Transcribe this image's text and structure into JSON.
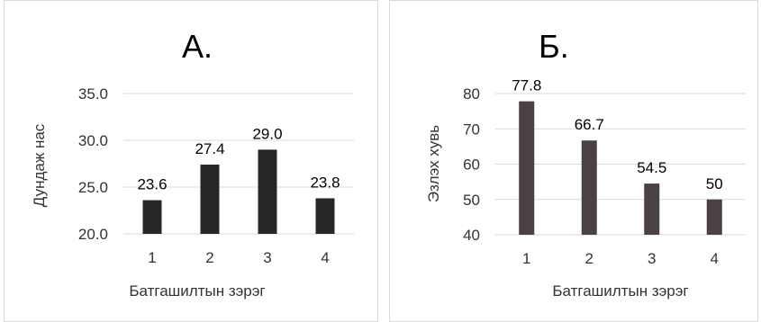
{
  "chart_data": [
    {
      "type": "bar",
      "title": "А.",
      "xlabel": "Батгашилтын зэрэг",
      "ylabel": "Дундаж нас",
      "categories": [
        "1",
        "2",
        "3",
        "4"
      ],
      "values": [
        23.6,
        27.4,
        29.0,
        23.8
      ],
      "data_labels": [
        "23.6",
        "27.4",
        "29.0",
        "23.8"
      ],
      "yticks": [
        "20.0",
        "25.0",
        "30.0",
        "35.0"
      ],
      "ylim": [
        20,
        35
      ],
      "grid": true,
      "legend": "none",
      "bar_color": "#262626"
    },
    {
      "type": "bar",
      "title": "Б.",
      "xlabel": "Батгашилтын зэрэг",
      "ylabel": "Эзлэх хувь",
      "categories": [
        "1",
        "2",
        "3",
        "4"
      ],
      "values": [
        77.8,
        66.7,
        54.5,
        50
      ],
      "data_labels": [
        "77.8",
        "66.7",
        "54.5",
        "50"
      ],
      "yticks": [
        "40",
        "50",
        "60",
        "70",
        "80"
      ],
      "ylim": [
        40,
        80
      ],
      "grid": true,
      "legend": "none",
      "bar_color": "#4a4143"
    }
  ]
}
